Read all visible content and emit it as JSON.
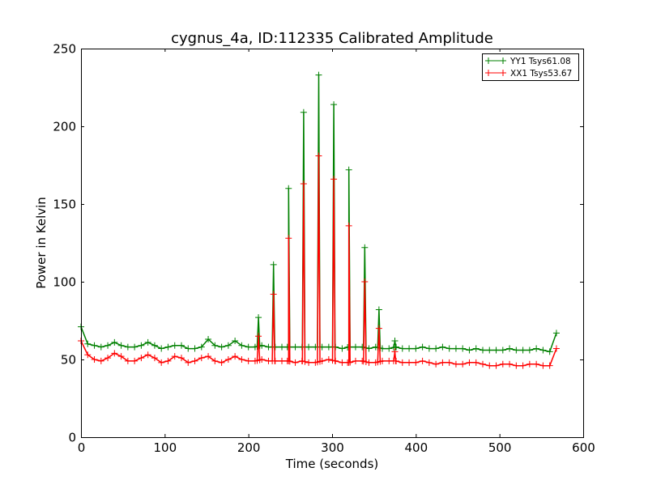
{
  "chart_data": {
    "type": "line",
    "title": "cygnus_4a, ID:112335 Calibrated Amplitude",
    "xlabel": "Time (seconds)",
    "ylabel": "Power in Kelvin",
    "xlim": [
      0,
      600
    ],
    "ylim": [
      0,
      250
    ],
    "xticks": [
      0,
      100,
      200,
      300,
      400,
      500,
      600
    ],
    "yticks": [
      0,
      50,
      100,
      150,
      200,
      250
    ],
    "grid": false,
    "legend_placement": "top-right",
    "baseline_step": 8,
    "series": [
      {
        "name": "YY1 Tsys61.08",
        "color": "#008000",
        "baseline": [
          71,
          60,
          59,
          58,
          59,
          61,
          59,
          58,
          58,
          59,
          61,
          59,
          57,
          58,
          59,
          59,
          57,
          57,
          58,
          63,
          59,
          58,
          59,
          62,
          59,
          58,
          58,
          59,
          58,
          58,
          58,
          58,
          58,
          58,
          58,
          58,
          58,
          58,
          58,
          57,
          58,
          58,
          58,
          57,
          58,
          57,
          57,
          58,
          57,
          57,
          57,
          58,
          57,
          57,
          58,
          57,
          57,
          57,
          56,
          57,
          56,
          56,
          56,
          56,
          57,
          56,
          56,
          56,
          57,
          56,
          55,
          67
        ],
        "peaks": [
          [
            212,
            77
          ],
          [
            230,
            111
          ],
          [
            248,
            160
          ],
          [
            266,
            209
          ],
          [
            284,
            233
          ],
          [
            302,
            214
          ],
          [
            320,
            172
          ],
          [
            339,
            122
          ],
          [
            356,
            82
          ],
          [
            375,
            62
          ]
        ]
      },
      {
        "name": "XX1 Tsys53.67",
        "color": "#ff0000",
        "baseline": [
          62,
          53,
          50,
          49,
          51,
          54,
          52,
          49,
          49,
          51,
          53,
          51,
          48,
          49,
          52,
          51,
          48,
          49,
          51,
          52,
          49,
          48,
          50,
          52,
          50,
          49,
          49,
          50,
          49,
          49,
          49,
          49,
          48,
          49,
          48,
          48,
          49,
          50,
          49,
          48,
          48,
          49,
          49,
          48,
          48,
          49,
          49,
          49,
          48,
          48,
          48,
          49,
          48,
          47,
          48,
          48,
          47,
          47,
          48,
          48,
          47,
          46,
          46,
          47,
          47,
          46,
          46,
          47,
          47,
          46,
          46,
          57
        ],
        "peaks": [
          [
            212,
            65
          ],
          [
            230,
            92
          ],
          [
            248,
            128
          ],
          [
            266,
            163
          ],
          [
            284,
            181
          ],
          [
            302,
            166
          ],
          [
            320,
            136
          ],
          [
            339,
            100
          ],
          [
            356,
            70
          ],
          [
            375,
            55
          ]
        ]
      }
    ]
  }
}
